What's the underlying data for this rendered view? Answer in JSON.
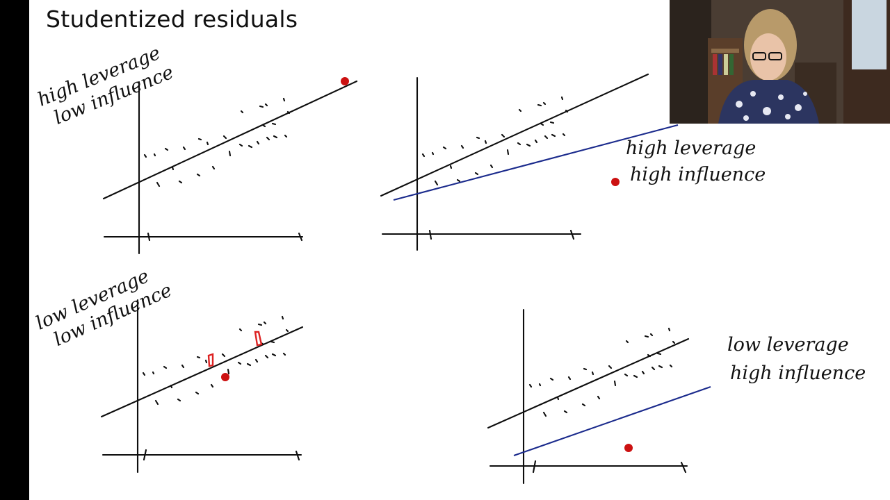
{
  "slide": {
    "title": "Studentized residuals"
  },
  "panels": {
    "top_left": {
      "line1": "high leverage",
      "line2": "low influence"
    },
    "top_right": {
      "line1": "high leverage",
      "line2": "high influence"
    },
    "bottom_left": {
      "line1": "low leverage",
      "line2": "low influence"
    },
    "bottom_right": {
      "line1": "low leverage",
      "line2": "high influence"
    }
  },
  "colors": {
    "ink": "#0d0d0d",
    "fit_line_new": "#1a2a8c",
    "outlier_point": "#cc1111",
    "background": "#ffffff"
  },
  "webcam": {
    "icon": "presenter-video-icon"
  }
}
